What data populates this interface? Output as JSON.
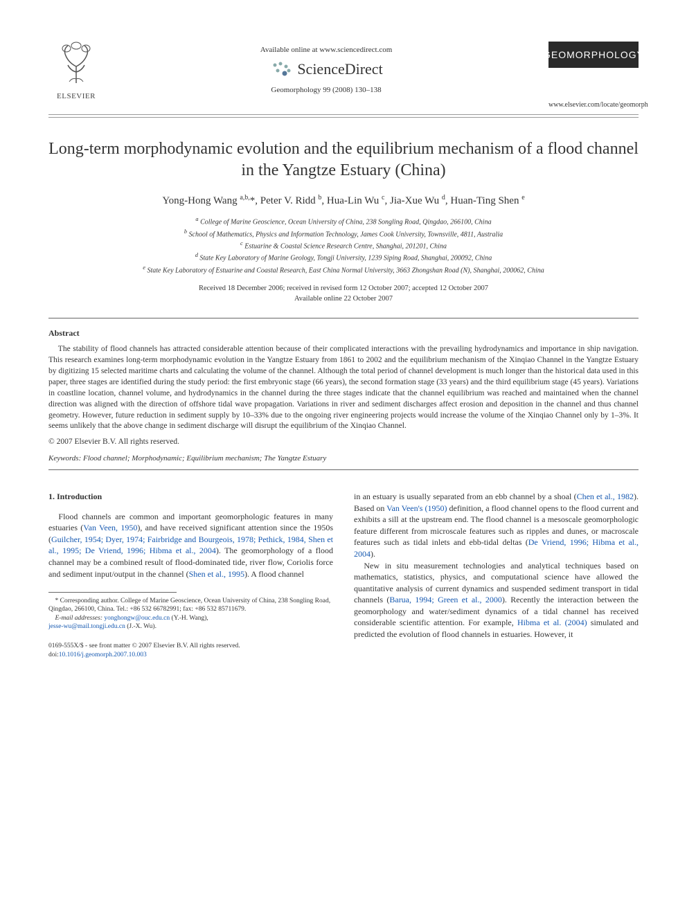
{
  "header": {
    "publisher": "ELSEVIER",
    "available_online": "Available online at www.sciencedirect.com",
    "platform": "ScienceDirect",
    "journal_ref": "Geomorphology 99 (2008) 130–138",
    "journal_cover_text": "GEOMORPHOLOGY",
    "journal_url": "www.elsevier.com/locate/geomorph"
  },
  "article": {
    "title": "Long-term morphodynamic evolution and the equilibrium mechanism of a flood channel in the Yangtze Estuary (China)",
    "authors_html": "Yong-Hong Wang <sup>a,b,</sup>*, Peter V. Ridd <sup>b</sup>, Hua-Lin Wu <sup>c</sup>, Jia-Xue Wu <sup>d</sup>, Huan-Ting Shen <sup>e</sup>",
    "affiliations": {
      "a": "College of Marine Geoscience, Ocean University of China, 238 Songling Road, Qingdao, 266100, China",
      "b": "School of Mathematics, Physics and Information Technology, James Cook University, Townsville, 4811, Australia",
      "c": "Estuarine & Coastal Science Research Centre, Shanghai, 201201, China",
      "d": "State Key Laboratory of Marine Geology, Tongji University, 1239 Siping Road, Shanghai, 200092, China",
      "e": "State Key Laboratory of Estuarine and Coastal Research, East China Normal University, 3663 Zhongshan Road (N), Shanghai, 200062, China"
    },
    "dates_line1": "Received 18 December 2006; received in revised form 12 October 2007; accepted 12 October 2007",
    "dates_line2": "Available online 22 October 2007"
  },
  "abstract": {
    "heading": "Abstract",
    "body": "The stability of flood channels has attracted considerable attention because of their complicated interactions with the prevailing hydrodynamics and importance in ship navigation. This research examines long-term morphodynamic evolution in the Yangtze Estuary from 1861 to 2002 and the equilibrium mechanism of the Xinqiao Channel in the Yangtze Estuary by digitizing 15 selected maritime charts and calculating the volume of the channel. Although the total period of channel development is much longer than the historical data used in this paper, three stages are identified during the study period: the first embryonic stage (66 years), the second formation stage (33 years) and the third equilibrium stage (45 years). Variations in coastline location, channel volume, and hydrodynamics in the channel during the three stages indicate that the channel equilibrium was reached and maintained when the channel direction was aligned with the direction of offshore tidal wave propagation. Variations in river and sediment discharges affect erosion and deposition in the channel and thus channel geometry. However, future reduction in sediment supply by 10–33% due to the ongoing river engineering projects would increase the volume of the Xinqiao Channel only by 1–3%. It seems unlikely that the above change in sediment discharge will disrupt the equilibrium of the Xinqiao Channel.",
    "copyright": "© 2007 Elsevier B.V. All rights reserved.",
    "keywords_label": "Keywords:",
    "keywords": "Flood channel; Morphodynamic; Equilibrium mechanism; The Yangtze Estuary"
  },
  "body": {
    "section_heading": "1. Introduction",
    "col1_p1_pre": "Flood channels are common and important geomorphologic features in many estuaries (",
    "col1_p1_ref1": "Van Veen, 1950",
    "col1_p1_mid": "), and have received significant attention since the 1950s (",
    "col1_p1_ref2": "Guilcher, 1954; Dyer, 1974; Fairbridge and Bourgeois, 1978; Pethick, 1984, Shen et al., 1995; De Vriend, 1996; Hibma et al., 2004",
    "col1_p1_post": "). The geomorphology of a flood channel may be a combined result of flood-dominated tide, river flow, Coriolis force and sediment input/output in the channel (",
    "col1_p1_ref3": "Shen et al., 1995",
    "col1_p1_end": "). A flood channel",
    "col2_p1_pre": "in an estuary is usually separated from an ebb channel by a shoal (",
    "col2_p1_ref1": "Chen et al., 1982",
    "col2_p1_mid1": "). Based on ",
    "col2_p1_ref2": "Van Veen's (1950)",
    "col2_p1_mid2": " definition, a flood channel opens to the flood current and exhibits a sill at the upstream end. The flood channel is a mesoscale geomorphologic feature different from microscale features such as ripples and dunes, or macroscale features such as tidal inlets and ebb-tidal deltas (",
    "col2_p1_ref3": "De Vriend, 1996; Hibma et al., 2004",
    "col2_p1_end": ").",
    "col2_p2_pre": "New in situ measurement technologies and analytical techniques based on mathematics, statistics, physics, and computational science have allowed the quantitative analysis of current dynamics and suspended sediment transport in tidal channels (",
    "col2_p2_ref1": "Barua, 1994; Green et al., 2000",
    "col2_p2_mid": "). Recently the interaction between the geomorphology and water/sediment dynamics of a tidal channel has received considerable scientific attention. For example, ",
    "col2_p2_ref2": "Hibma et al. (2004)",
    "col2_p2_end": " simulated and predicted the evolution of flood channels in estuaries. However, it"
  },
  "footnote": {
    "corr": "* Corresponding author. College of Marine Geoscience, Ocean University of China, 238 Songling Road, Qingdao, 266100, China. Tel.: +86 532 66782991; fax: +86 532 85711679.",
    "email_label": "E-mail addresses:",
    "email1": "yonghongw@ouc.edu.cn",
    "email1_name": " (Y.-H. Wang),",
    "email2": "jesse-wu@mail.tongji.edu.cn",
    "email2_name": " (J.-X. Wu)."
  },
  "footer": {
    "line1": "0169-555X/$ - see front matter © 2007 Elsevier B.V. All rights reserved.",
    "doi_label": "doi:",
    "doi": "10.1016/j.geomorph.2007.10.003"
  }
}
